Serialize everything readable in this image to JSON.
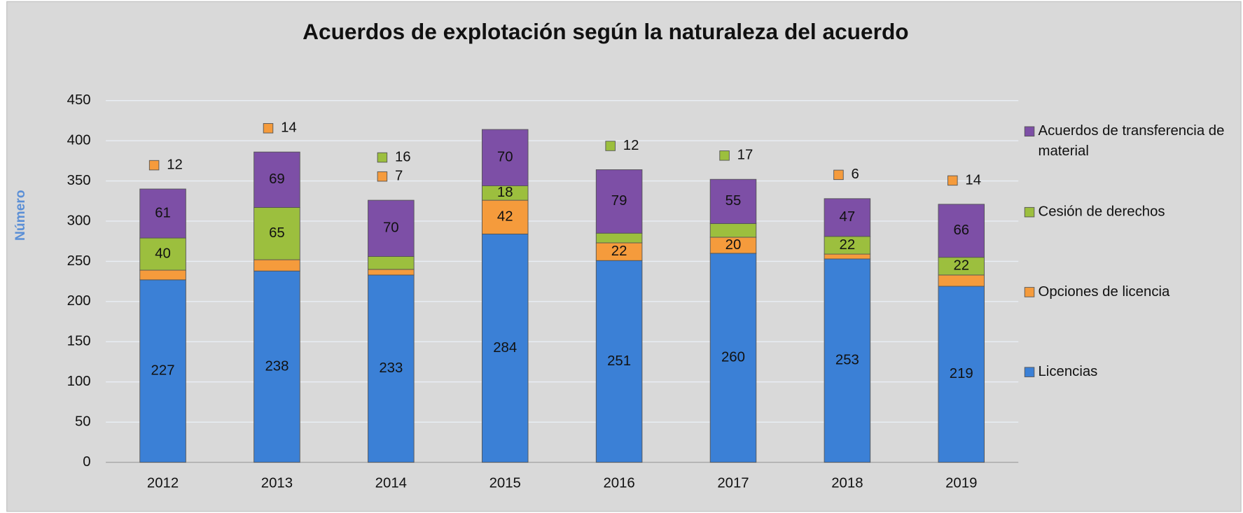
{
  "chart_data": {
    "type": "stacked_bar",
    "title": "Acuerdos de explotación según la naturaleza del acuerdo",
    "ylabel": "Número",
    "categories": [
      "2012",
      "2013",
      "2014",
      "2015",
      "2016",
      "2017",
      "2018",
      "2019"
    ],
    "series": [
      {
        "name": "Licencias",
        "color": "#3b80d6",
        "values": [
          227,
          238,
          233,
          284,
          251,
          260,
          253,
          219
        ]
      },
      {
        "name": "Opciones de licencia",
        "color": "#f59b3c",
        "values": [
          12,
          14,
          7,
          42,
          22,
          20,
          6,
          14
        ]
      },
      {
        "name": "Cesión de derechos",
        "color": "#9cbf3e",
        "values": [
          40,
          65,
          16,
          18,
          12,
          17,
          22,
          22
        ]
      },
      {
        "name": "Acuerdos de transferencia de material",
        "color": "#7d4fa6",
        "values": [
          61,
          69,
          70,
          70,
          79,
          55,
          47,
          66
        ]
      }
    ],
    "ylim": [
      0,
      450
    ],
    "yticks": [
      0,
      50,
      100,
      150,
      200,
      250,
      300,
      350,
      400,
      450
    ],
    "grid": true,
    "legend": "right"
  }
}
